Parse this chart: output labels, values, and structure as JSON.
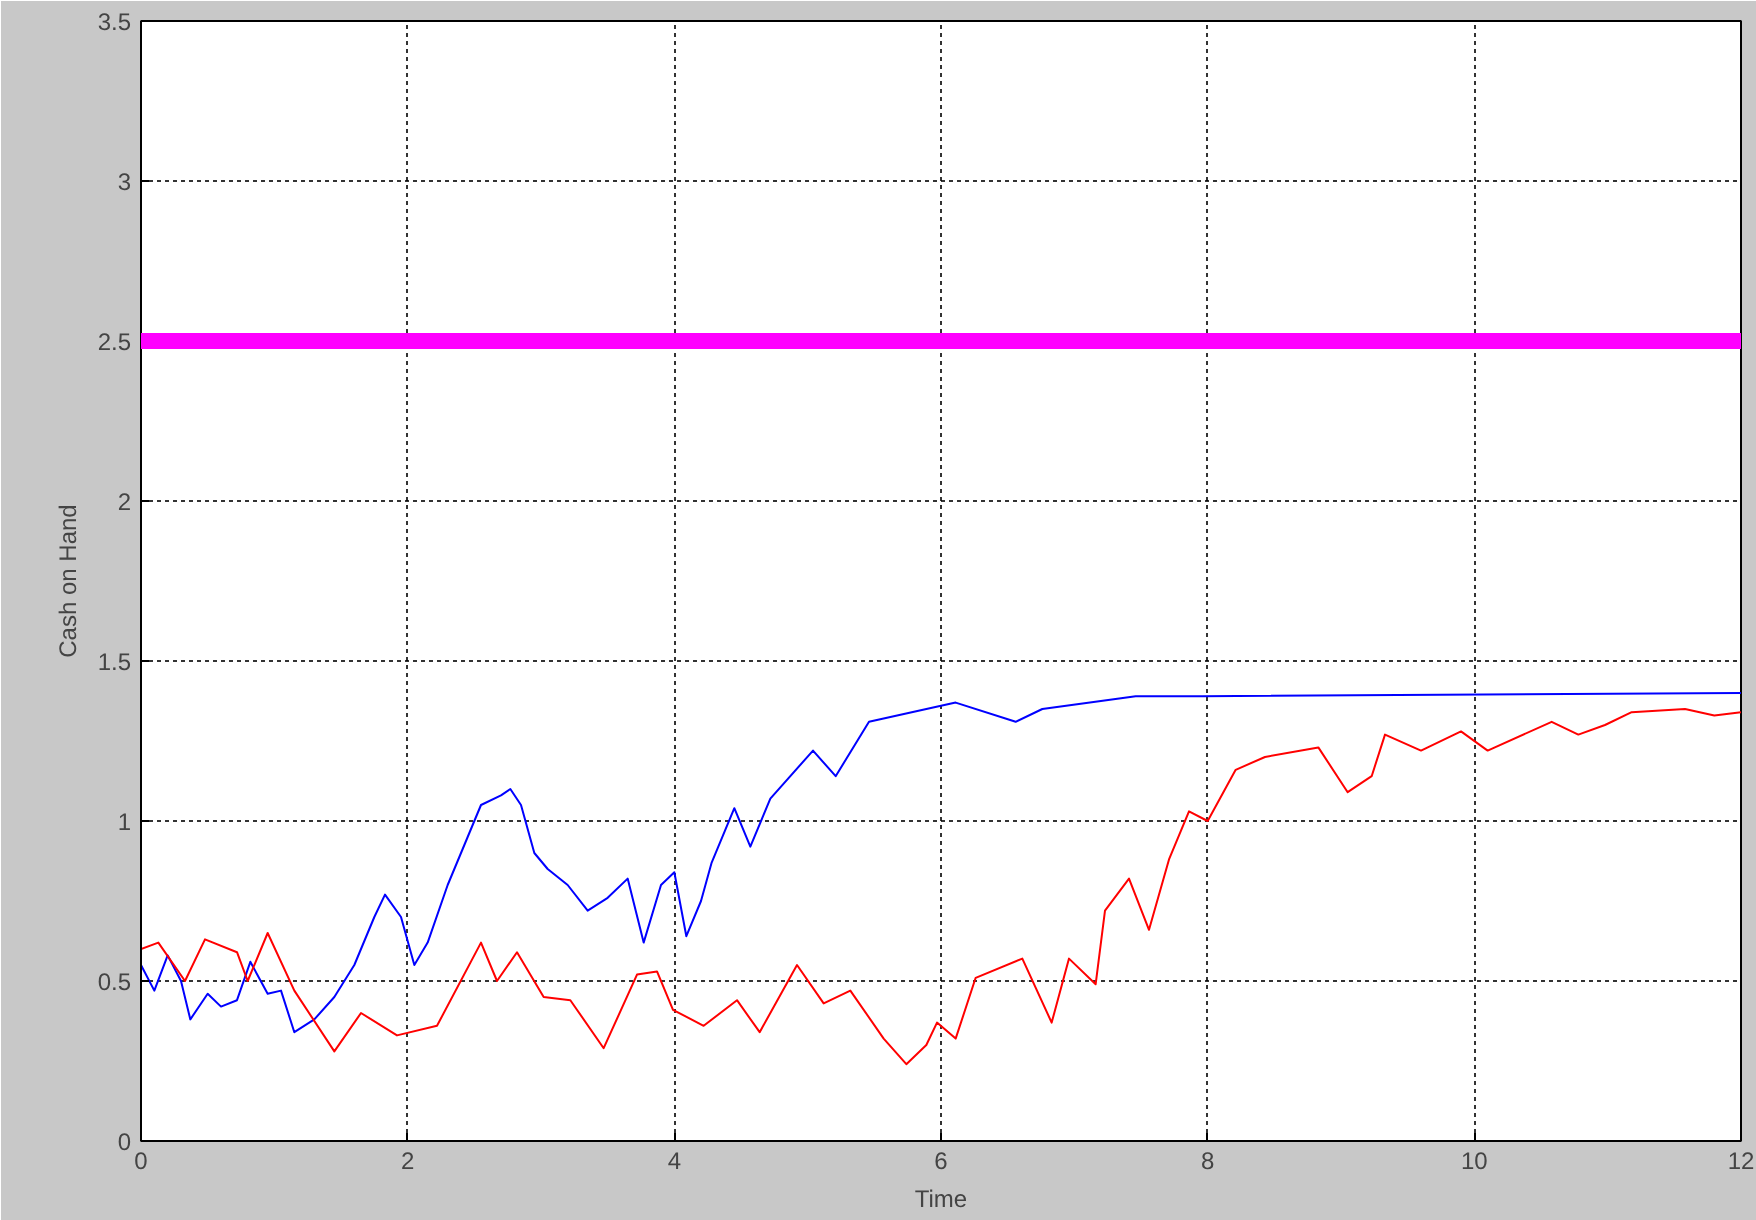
{
  "chart_data": {
    "type": "line",
    "xlabel": "Time",
    "ylabel": "Cash on Hand",
    "xlim": [
      0,
      12
    ],
    "ylim": [
      0,
      3.5
    ],
    "xticks": [
      0,
      2,
      4,
      6,
      8,
      10,
      12
    ],
    "yticks": [
      0,
      0.5,
      1,
      1.5,
      2,
      2.5,
      3,
      3.5
    ],
    "grid": true,
    "line_style": "solid",
    "marker": "none",
    "ref_lines": [
      {
        "axis": "y",
        "value": 2.5,
        "label": null,
        "color": "#ff00ff"
      }
    ],
    "series": [
      {
        "color": "#0000ff",
        "x": [
          0,
          0.1,
          0.2,
          0.3,
          0.37,
          0.5,
          0.6,
          0.72,
          0.82,
          0.95,
          1.05,
          1.15,
          1.3,
          1.45,
          1.6,
          1.75,
          1.83,
          1.95,
          2.05,
          2.15,
          2.3,
          2.45,
          2.55,
          2.7,
          2.77,
          2.85,
          2.95,
          3.05,
          3.2,
          3.35,
          3.5,
          3.65,
          3.77,
          3.9,
          4.0,
          4.09,
          4.2,
          4.28,
          4.45,
          4.57,
          4.72,
          5.04,
          5.21,
          5.46,
          6.0,
          6.11,
          6.56,
          6.76,
          7.46,
          7.96,
          12
        ],
        "values": [
          0.55,
          0.47,
          0.58,
          0.5,
          0.38,
          0.46,
          0.42,
          0.44,
          0.56,
          0.46,
          0.47,
          0.34,
          0.38,
          0.45,
          0.55,
          0.7,
          0.77,
          0.7,
          0.55,
          0.62,
          0.8,
          0.95,
          1.05,
          1.08,
          1.1,
          1.05,
          0.9,
          0.85,
          0.8,
          0.72,
          0.76,
          0.82,
          0.62,
          0.8,
          0.84,
          0.64,
          0.75,
          0.87,
          1.04,
          0.92,
          1.07,
          1.22,
          1.14,
          1.31,
          1.36,
          1.37,
          1.31,
          1.35,
          1.39,
          1.39,
          1.4
        ]
      },
      {
        "color": "#ff0000",
        "x": [
          0,
          0.13,
          0.33,
          0.48,
          0.72,
          0.8,
          0.95,
          1.15,
          1.45,
          1.65,
          1.92,
          2.22,
          2.55,
          2.67,
          2.82,
          3.02,
          3.22,
          3.47,
          3.72,
          3.87,
          3.99,
          4.22,
          4.47,
          4.64,
          4.92,
          5.12,
          5.32,
          5.57,
          5.74,
          5.89,
          5.97,
          6.11,
          6.26,
          6.61,
          6.83,
          6.96,
          7.16,
          7.23,
          7.41,
          7.56,
          7.71,
          7.86,
          8.0,
          8.21,
          8.43,
          8.83,
          9.05,
          9.23,
          9.33,
          9.6,
          9.9,
          10.1,
          10.58,
          10.78,
          10.98,
          11.18,
          11.58,
          11.8,
          12
        ],
        "values": [
          0.6,
          0.62,
          0.5,
          0.63,
          0.59,
          0.5,
          0.65,
          0.47,
          0.28,
          0.4,
          0.33,
          0.36,
          0.62,
          0.5,
          0.59,
          0.45,
          0.44,
          0.29,
          0.52,
          0.53,
          0.41,
          0.36,
          0.44,
          0.34,
          0.55,
          0.43,
          0.47,
          0.32,
          0.24,
          0.3,
          0.37,
          0.32,
          0.51,
          0.57,
          0.37,
          0.57,
          0.49,
          0.72,
          0.82,
          0.66,
          0.88,
          1.03,
          1.0,
          1.16,
          1.2,
          1.23,
          1.09,
          1.14,
          1.27,
          1.22,
          1.28,
          1.22,
          1.31,
          1.27,
          1.3,
          1.34,
          1.35,
          1.33,
          1.34
        ]
      }
    ]
  }
}
